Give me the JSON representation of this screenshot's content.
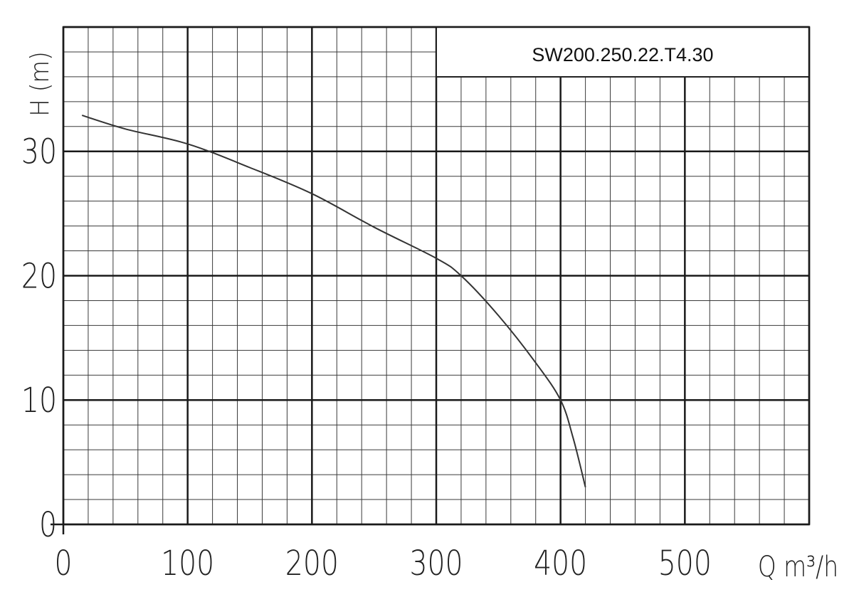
{
  "chart_data": {
    "type": "line",
    "title": "SW200.250.22.T4.30",
    "xlabel": "Q m³/h",
    "ylabel": "H (m)",
    "xlim": [
      0,
      600
    ],
    "ylim": [
      0,
      40
    ],
    "x_ticks": [
      "0",
      "100",
      "200",
      "300",
      "400",
      "500"
    ],
    "y_ticks": [
      "0",
      "10",
      "20",
      "30"
    ],
    "grid": true,
    "series": [
      {
        "x": [
          15,
          50,
          100,
          150,
          200,
          250,
          300,
          320,
          350,
          380,
          400,
          410,
          420
        ],
        "y": [
          32.9,
          31.8,
          30.6,
          28.7,
          26.6,
          23.9,
          21.4,
          20.0,
          16.8,
          13.0,
          10.0,
          7.0,
          3.0
        ],
        "color": "#333333"
      }
    ]
  }
}
